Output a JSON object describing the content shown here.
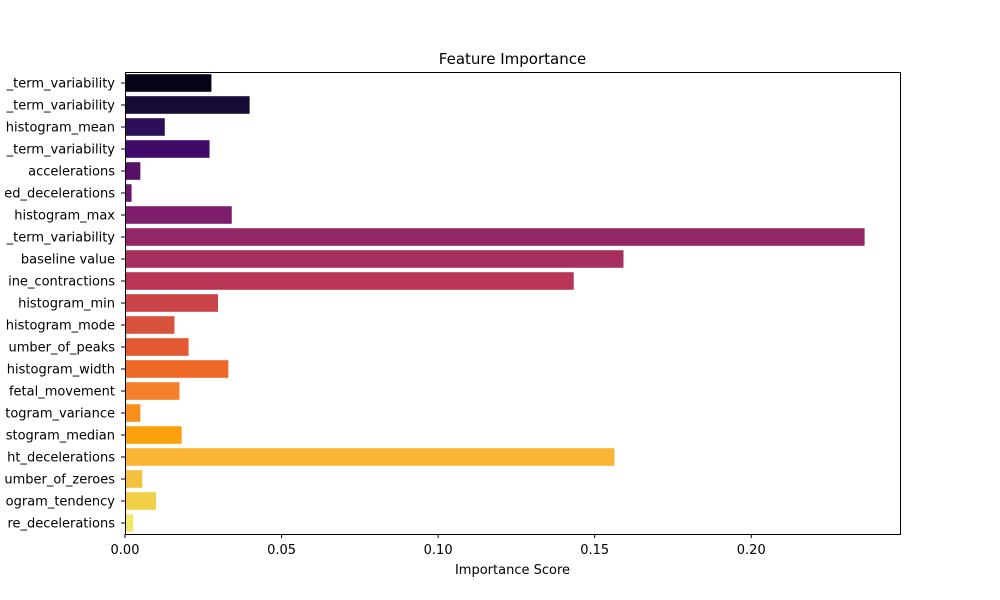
{
  "chart_data": {
    "type": "bar",
    "orientation": "horizontal",
    "title": "Feature Importance",
    "xlabel": "Importance Score",
    "ylabel": "",
    "xlim": [
      0,
      0.2475
    ],
    "xticks": [
      0.0,
      0.05,
      0.1,
      0.15,
      0.2
    ],
    "xtick_labels": [
      "0.00",
      "0.05",
      "0.10",
      "0.15",
      "0.20"
    ],
    "grid": false,
    "categories": [
      "_term_variability",
      "_term_variability",
      "histogram_mean",
      "_term_variability",
      "accelerations",
      "ed_decelerations",
      "histogram_max",
      "_term_variability",
      "baseline value",
      "ine_contractions",
      "histogram_min",
      "histogram_mode",
      "umber_of_peaks",
      "histogram_width",
      "fetal_movement",
      "togram_variance",
      "stogram_median",
      "ht_decelerations",
      "umber_of_zeroes",
      "ogram_tendency",
      "re_decelerations"
    ],
    "values": [
      0.0276,
      0.0398,
      0.0127,
      0.027,
      0.0049,
      0.0021,
      0.0341,
      0.2362,
      0.1592,
      0.1433,
      0.0297,
      0.0158,
      0.0203,
      0.033,
      0.0174,
      0.0049,
      0.0181,
      0.1563,
      0.0055,
      0.0099,
      0.0026
    ],
    "colors": [
      "#050417",
      "#170c38",
      "#2c0f58",
      "#420a68",
      "#561068",
      "#6a176e",
      "#7e1f6d",
      "#932667",
      "#a62f5f",
      "#b93556",
      "#ca4348",
      "#d8533b",
      "#e35932",
      "#ed6925",
      "#f4802b",
      "#f6901a",
      "#fba10e",
      "#fbb535",
      "#f4c13d",
      "#f1d048",
      "#f2e868"
    ]
  }
}
